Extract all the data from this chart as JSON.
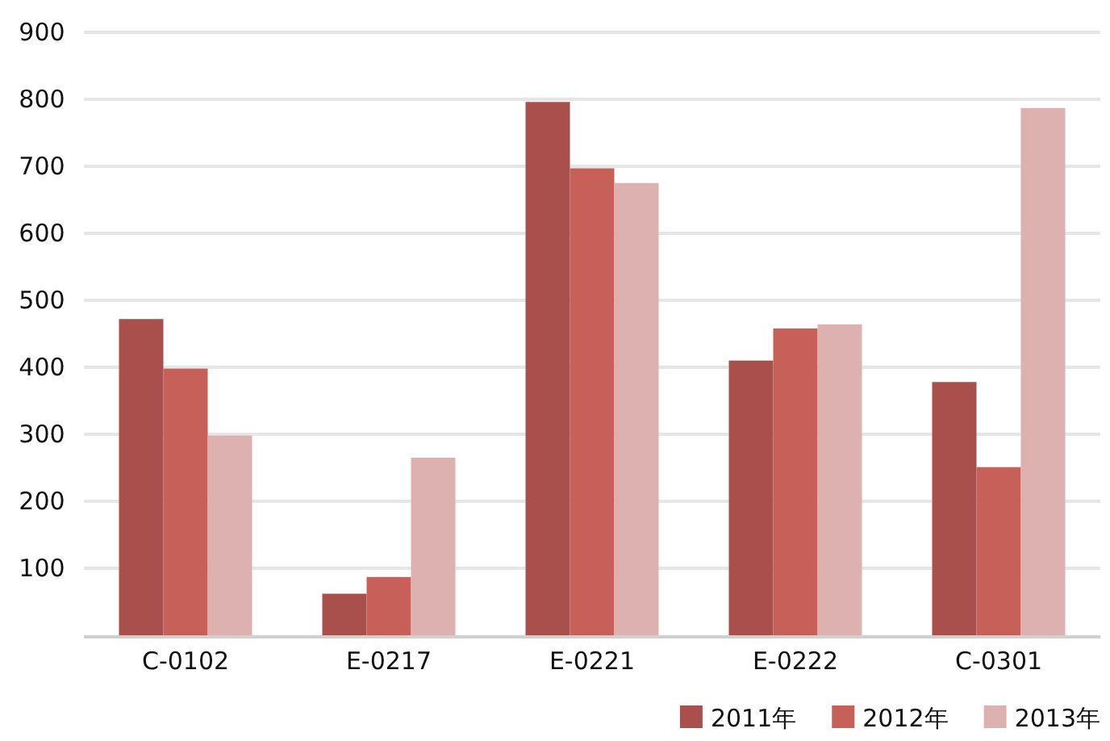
{
  "chart_data": {
    "type": "bar",
    "categories": [
      "C-0102",
      "E-0217",
      "E-0221",
      "E-0222",
      "C-0301"
    ],
    "series": [
      {
        "name": "2011年",
        "color": "#a94f4c",
        "values": [
          472,
          62,
          796,
          410,
          378
        ]
      },
      {
        "name": "2012年",
        "color": "#c8605a",
        "values": [
          398,
          87,
          697,
          458,
          251
        ]
      },
      {
        "name": "2013年",
        "color": "#dcb1b0",
        "values": [
          298,
          265,
          675,
          464,
          787
        ]
      }
    ],
    "ylim": [
      0,
      900
    ],
    "yticks": [
      100,
      200,
      300,
      400,
      500,
      600,
      700,
      800,
      900
    ],
    "grid": "y",
    "legend": "bottom right"
  }
}
